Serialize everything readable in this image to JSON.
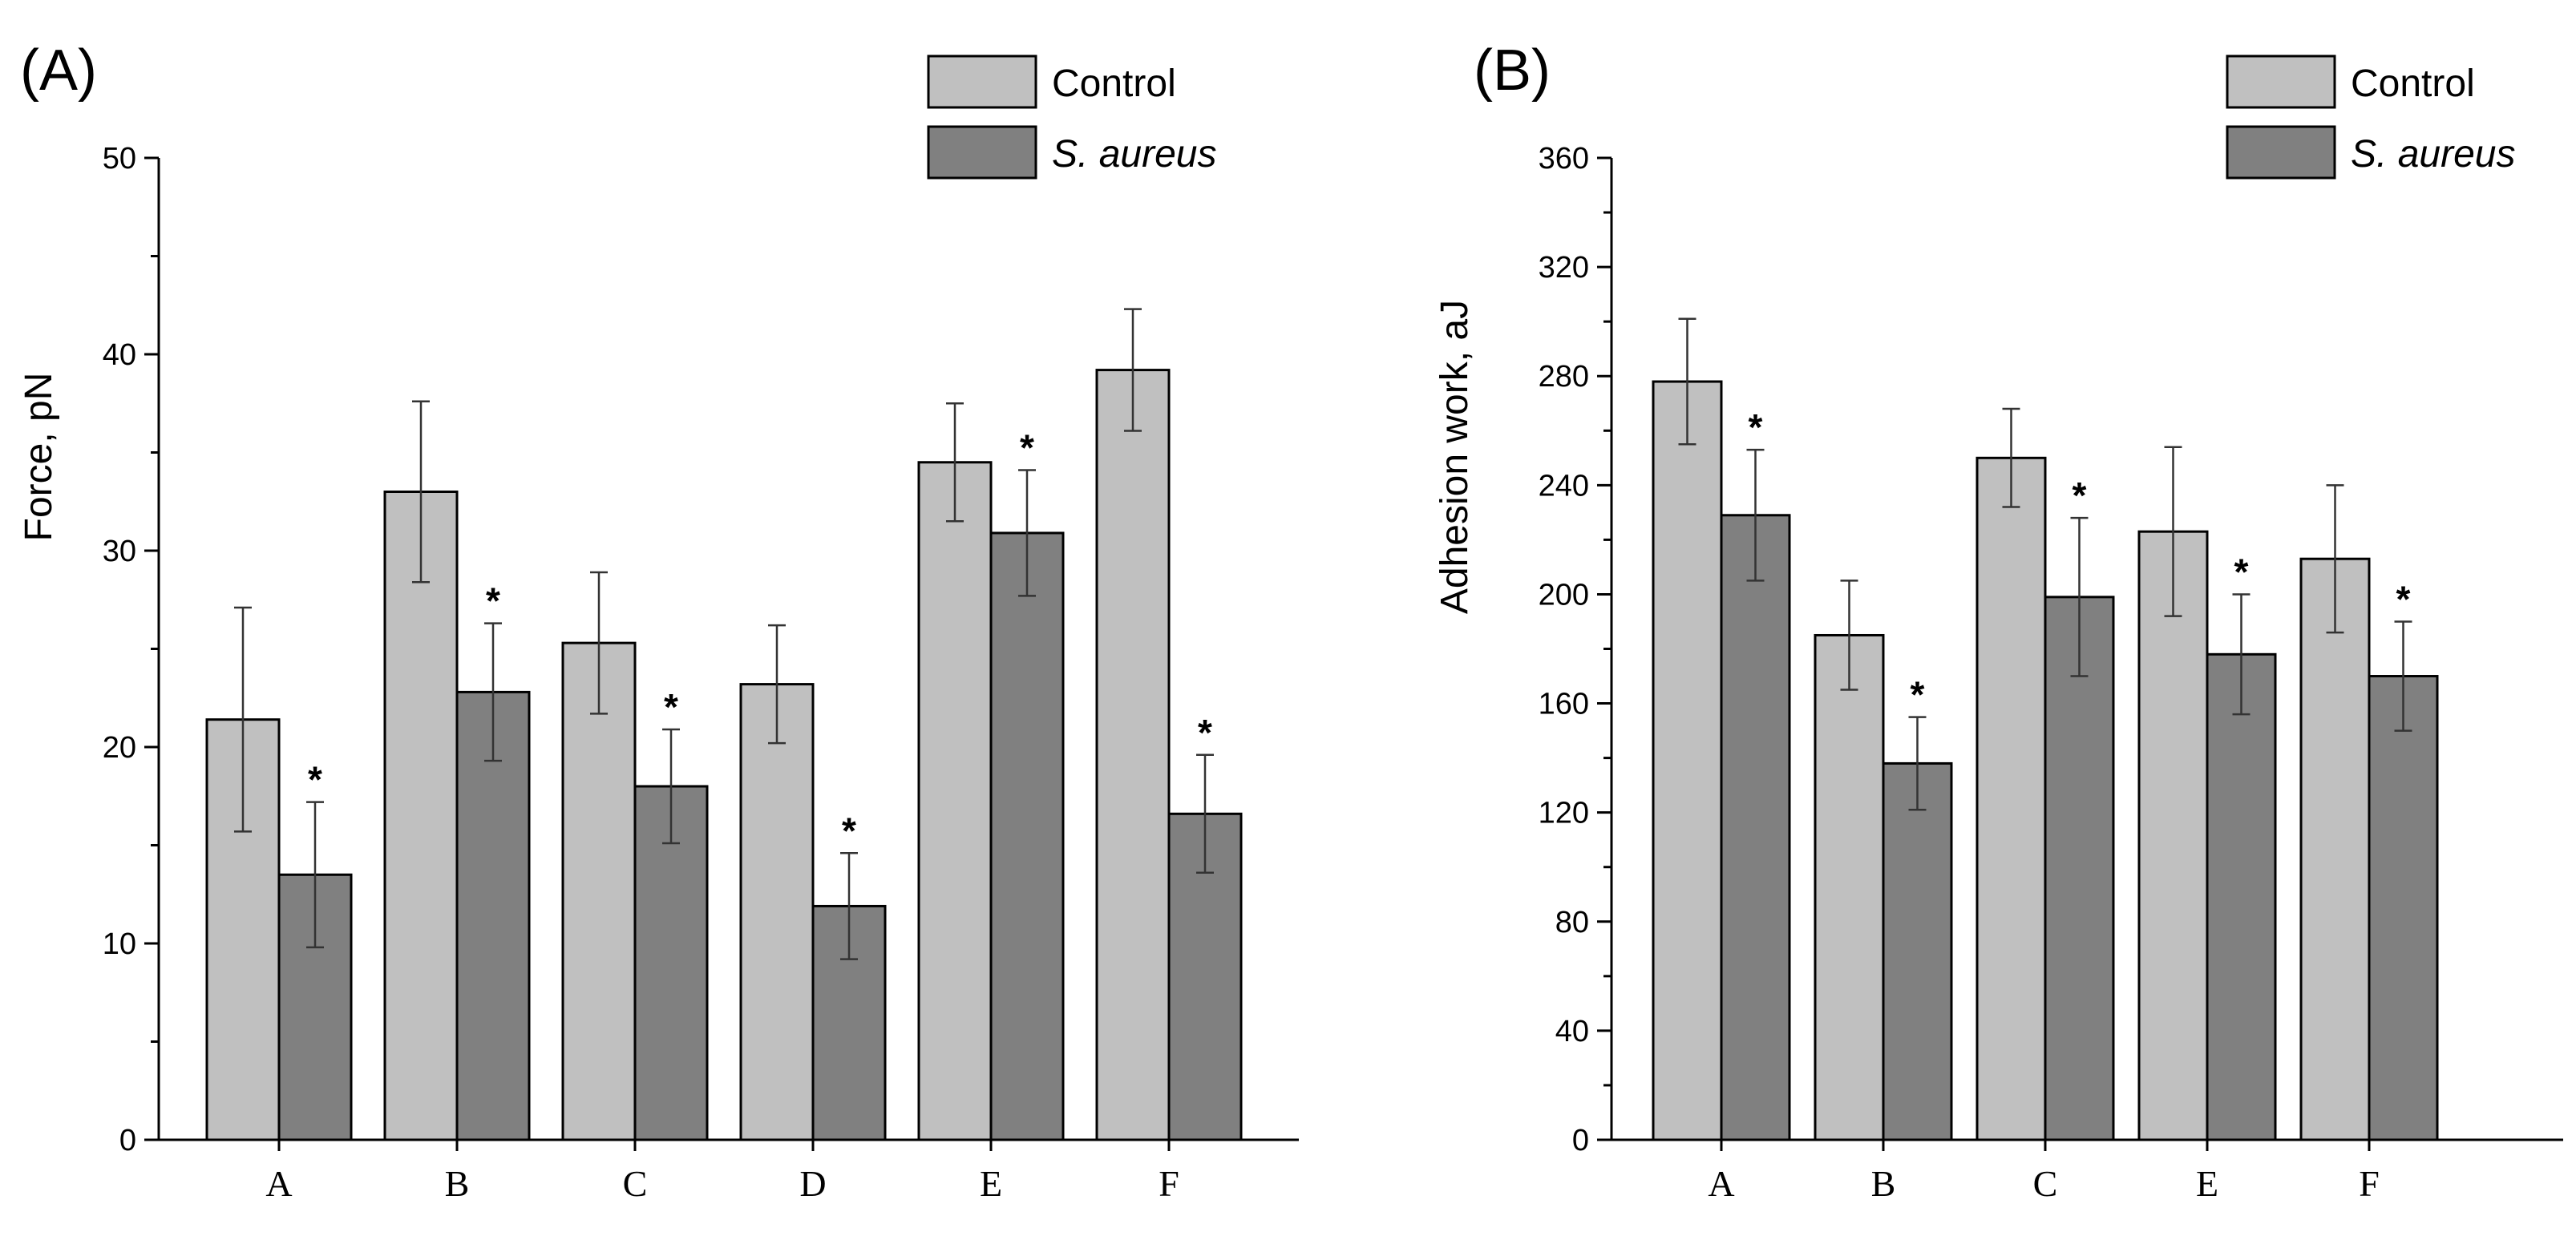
{
  "chart_data": [
    {
      "type": "bar",
      "panel_label": "(A)",
      "categories": [
        "A",
        "B",
        "C",
        "D",
        "E",
        "F"
      ],
      "series": [
        {
          "name": "Control",
          "values": [
            21.4,
            33.0,
            25.3,
            23.2,
            34.5,
            39.2
          ],
          "errors": [
            5.7,
            4.6,
            3.6,
            3.0,
            3.0,
            3.1
          ]
        },
        {
          "name": "S. aureus",
          "values": [
            13.5,
            22.8,
            18.0,
            11.9,
            30.9,
            16.6
          ],
          "errors": [
            3.7,
            3.5,
            2.9,
            2.7,
            3.2,
            3.0
          ]
        }
      ],
      "significance_marker": "*",
      "significant": [
        true,
        true,
        true,
        true,
        true,
        true
      ],
      "xlabel": "",
      "ylabel": "Force, pN",
      "ylim": [
        0,
        50
      ],
      "yticks": [
        0,
        10,
        20,
        30,
        40,
        50
      ],
      "legend_position": "top-right",
      "grid": false
    },
    {
      "type": "bar",
      "panel_label": "(B)",
      "categories": [
        "A",
        "B",
        "C",
        "E",
        "F"
      ],
      "series": [
        {
          "name": "Control",
          "values": [
            278,
            185,
            250,
            223,
            213
          ],
          "errors": [
            23,
            20,
            18,
            31,
            27
          ]
        },
        {
          "name": "S. aureus",
          "values": [
            229,
            138,
            199,
            178,
            170
          ],
          "errors": [
            24,
            17,
            29,
            22,
            20
          ]
        }
      ],
      "significance_marker": "*",
      "significant": [
        true,
        true,
        true,
        true,
        true
      ],
      "xlabel": "",
      "ylabel": "Adhesion work, aJ",
      "ylim": [
        0,
        360
      ],
      "yticks": [
        0,
        40,
        80,
        120,
        160,
        200,
        240,
        280,
        320,
        360
      ],
      "legend_position": "top-right",
      "grid": false
    }
  ],
  "colors": {
    "control": "#c0c0c0",
    "treated": "#808080",
    "stroke": "#000000",
    "error_bar": "#333333"
  }
}
